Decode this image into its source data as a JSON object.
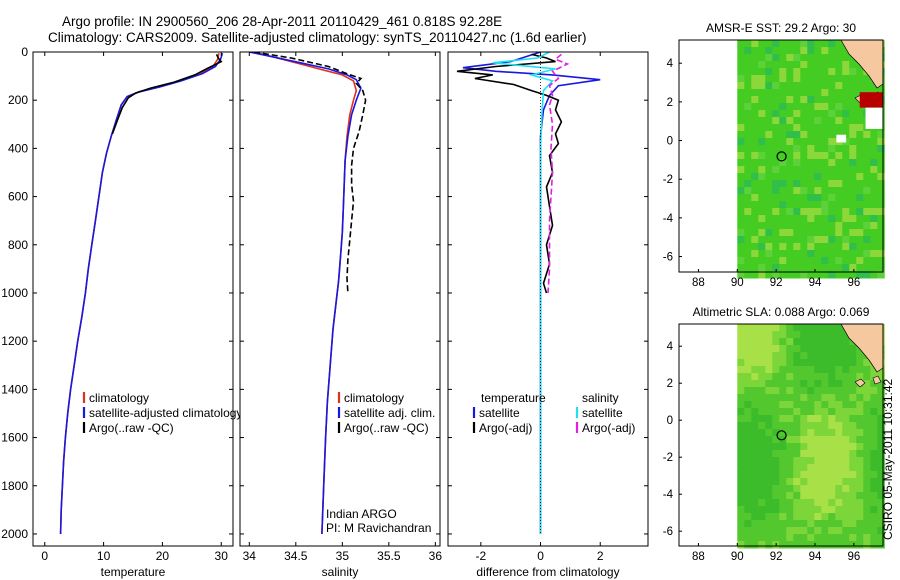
{
  "title": {
    "line1": "Argo profile: IN 2900560_206 28-Apr-2011 20110429_461 0.818S 92.28E",
    "line2": "Climatology: CARS2009. Satellite-adjusted climatology: synTS_20110427.nc (1.6d earlier)"
  },
  "footer": "CSIRO 05-May-2011 10:31:42",
  "colors": {
    "climatology": "#e0301e",
    "satellite": "#1818e0",
    "argo": "#000000",
    "cyan": "#22e0f0",
    "magenta": "#e020e0",
    "ocean": "#44cc22",
    "land": "#f5c8a0",
    "nodata": "#ffffff"
  },
  "chart_data": [
    {
      "type": "line",
      "id": "temperature",
      "xlabel": "temperature",
      "xlim": [
        -2,
        32
      ],
      "ylim": [
        0,
        2050
      ],
      "xticks": [
        "0",
        "10",
        "20",
        "30"
      ],
      "yticks": [
        "0",
        "200",
        "400",
        "600",
        "800",
        "1000",
        "1200",
        "1400",
        "1600",
        "1800",
        "2000"
      ],
      "legend": [
        "climatology",
        "satellite-adjusted climatology",
        "Argo(..raw -QC)"
      ],
      "series": [
        {
          "name": "climatology",
          "color": "#e0301e",
          "dash": false,
          "points": [
            [
              29.6,
              5
            ],
            [
              29.4,
              30
            ],
            [
              28.6,
              60
            ],
            [
              26.5,
              90
            ],
            [
              23.0,
              120
            ],
            [
              19.5,
              145
            ],
            [
              16.0,
              165
            ],
            [
              14.0,
              185
            ],
            [
              13.0,
              220
            ],
            [
              12.2,
              280
            ],
            [
              11.3,
              350
            ],
            [
              10.5,
              420
            ],
            [
              9.8,
              500
            ],
            [
              9.2,
              600
            ],
            [
              8.6,
              700
            ],
            [
              8.0,
              800
            ],
            [
              7.4,
              900
            ],
            [
              6.9,
              1000
            ],
            [
              6.3,
              1100
            ],
            [
              5.6,
              1200
            ],
            [
              5.0,
              1300
            ],
            [
              4.4,
              1400
            ],
            [
              3.9,
              1500
            ],
            [
              3.5,
              1600
            ],
            [
              3.2,
              1700
            ],
            [
              3.0,
              1800
            ],
            [
              2.8,
              1900
            ],
            [
              2.7,
              2000
            ]
          ]
        },
        {
          "name": "satellite-adjusted climatology",
          "color": "#1818e0",
          "dash": false,
          "points": [
            [
              30.2,
              5
            ],
            [
              29.9,
              30
            ],
            [
              29.0,
              60
            ],
            [
              26.8,
              90
            ],
            [
              23.2,
              120
            ],
            [
              19.6,
              145
            ],
            [
              16.1,
              165
            ],
            [
              14.0,
              185
            ],
            [
              13.0,
              220
            ],
            [
              12.2,
              280
            ],
            [
              11.3,
              350
            ],
            [
              10.5,
              420
            ],
            [
              9.8,
              500
            ],
            [
              9.2,
              600
            ],
            [
              8.6,
              700
            ],
            [
              8.0,
              800
            ],
            [
              7.4,
              900
            ],
            [
              6.9,
              1000
            ],
            [
              6.3,
              1100
            ],
            [
              5.6,
              1200
            ],
            [
              5.0,
              1300
            ],
            [
              4.4,
              1400
            ],
            [
              3.9,
              1500
            ],
            [
              3.5,
              1600
            ],
            [
              3.2,
              1700
            ],
            [
              3.0,
              1800
            ],
            [
              2.8,
              1900
            ],
            [
              2.7,
              2000
            ]
          ]
        },
        {
          "name": "Argo(..raw -QC)",
          "color": "#000000",
          "dash": false,
          "points": [
            [
              29.2,
              10
            ],
            [
              29.5,
              25
            ],
            [
              30.0,
              40
            ],
            [
              27.5,
              70
            ],
            [
              25.5,
              95
            ],
            [
              22.0,
              125
            ],
            [
              18.0,
              150
            ],
            [
              15.5,
              170
            ],
            [
              14.2,
              190
            ],
            [
              13.2,
              230
            ],
            [
              12.4,
              280
            ],
            [
              11.5,
              340
            ]
          ]
        }
      ]
    },
    {
      "type": "line",
      "id": "salinity",
      "xlabel": "salinity",
      "xlim": [
        33.9,
        36.05
      ],
      "ylim": [
        0,
        2050
      ],
      "xticks": [
        "34",
        "34.5",
        "35",
        "35.5",
        "36"
      ],
      "legend": [
        "climatology",
        "satellite adj. clim.",
        "Argo(..raw -QC)"
      ],
      "annotation": [
        "Indian ARGO",
        "PI: M Ravichandran"
      ],
      "series": [
        {
          "name": "climatology",
          "color": "#e0301e",
          "dash": false,
          "points": [
            [
              34.05,
              0
            ],
            [
              34.3,
              25
            ],
            [
              34.55,
              50
            ],
            [
              34.8,
              75
            ],
            [
              35.0,
              95
            ],
            [
              35.12,
              120
            ],
            [
              35.15,
              160
            ],
            [
              35.12,
              200
            ],
            [
              35.08,
              260
            ],
            [
              35.05,
              350
            ],
            [
              35.03,
              450
            ],
            [
              35.02,
              550
            ],
            [
              35.01,
              650
            ],
            [
              35.0,
              750
            ],
            [
              34.98,
              850
            ],
            [
              34.96,
              950
            ],
            [
              34.93,
              1050
            ],
            [
              34.9,
              1150
            ],
            [
              34.87,
              1300
            ],
            [
              34.84,
              1450
            ],
            [
              34.82,
              1600
            ],
            [
              34.8,
              1800
            ],
            [
              34.78,
              2000
            ]
          ]
        },
        {
          "name": "satellite adj. clim.",
          "color": "#1818e0",
          "dash": false,
          "points": [
            [
              34.0,
              0
            ],
            [
              34.25,
              20
            ],
            [
              34.55,
              45
            ],
            [
              34.85,
              70
            ],
            [
              35.05,
              95
            ],
            [
              35.15,
              115
            ],
            [
              35.2,
              150
            ],
            [
              35.15,
              200
            ],
            [
              35.1,
              260
            ],
            [
              35.06,
              350
            ],
            [
              35.03,
              450
            ],
            [
              35.02,
              550
            ],
            [
              35.01,
              650
            ],
            [
              35.0,
              750
            ],
            [
              34.98,
              850
            ],
            [
              34.96,
              950
            ],
            [
              34.93,
              1050
            ],
            [
              34.9,
              1150
            ],
            [
              34.87,
              1300
            ],
            [
              34.84,
              1450
            ],
            [
              34.82,
              1600
            ],
            [
              34.8,
              1800
            ],
            [
              34.78,
              2000
            ]
          ]
        },
        {
          "name": "Argo(..raw -QC)",
          "color": "#000000",
          "dash": true,
          "points": [
            [
              34.05,
              0
            ],
            [
              34.45,
              25
            ],
            [
              34.85,
              60
            ],
            [
              35.05,
              90
            ],
            [
              35.2,
              110
            ],
            [
              35.15,
              130
            ],
            [
              35.22,
              160
            ],
            [
              35.25,
              200
            ],
            [
              35.22,
              260
            ],
            [
              35.18,
              330
            ],
            [
              35.12,
              400
            ],
            [
              35.1,
              470
            ],
            [
              35.1,
              550
            ],
            [
              35.12,
              620
            ],
            [
              35.1,
              700
            ],
            [
              35.08,
              780
            ],
            [
              35.06,
              860
            ],
            [
              35.05,
              940
            ],
            [
              35.06,
              1000
            ]
          ]
        }
      ]
    },
    {
      "type": "line",
      "id": "difference",
      "xlabel": "difference from climatology",
      "xlim": [
        -3.1,
        3.6
      ],
      "ylim": [
        0,
        2050
      ],
      "xticks": [
        "-2",
        "0",
        "2"
      ],
      "legend_headers": [
        "temperature",
        "salinity"
      ],
      "legend": [
        "satellite",
        "Argo(-adj)",
        "satellite",
        "Argo(-adj)"
      ],
      "series": [
        {
          "name": "temperature satellite",
          "color": "#1818e0",
          "dash": false,
          "points": [
            [
              0,
              0
            ],
            [
              -1.0,
              40
            ],
            [
              -2.6,
              65
            ],
            [
              -1.5,
              80
            ],
            [
              0.4,
              95
            ],
            [
              2.0,
              115
            ],
            [
              0.6,
              140
            ],
            [
              0.3,
              180
            ],
            [
              0.1,
              240
            ],
            [
              0,
              350
            ],
            [
              0,
              600
            ],
            [
              0,
              1000
            ],
            [
              0,
              2000
            ]
          ]
        },
        {
          "name": "temperature Argo(-adj)",
          "color": "#000000",
          "dash": false,
          "points": [
            [
              -0.3,
              10
            ],
            [
              0.2,
              25
            ],
            [
              0.5,
              40
            ],
            [
              -1.5,
              60
            ],
            [
              -2.8,
              80
            ],
            [
              -1.6,
              95
            ],
            [
              -2.2,
              110
            ],
            [
              -0.9,
              135
            ],
            [
              -0.3,
              160
            ],
            [
              0.2,
              180
            ],
            [
              0.6,
              200
            ],
            [
              0.5,
              240
            ],
            [
              0.7,
              290
            ],
            [
              0.5,
              340
            ],
            [
              0.6,
              380
            ],
            [
              0.3,
              430
            ],
            [
              0.4,
              500
            ],
            [
              0.2,
              560
            ],
            [
              0.3,
              640
            ],
            [
              0.4,
              720
            ],
            [
              0.2,
              800
            ],
            [
              0.3,
              880
            ],
            [
              0.1,
              960
            ],
            [
              0.2,
              1000
            ]
          ]
        },
        {
          "name": "salinity satellite",
          "color": "#22e0f0",
          "dash": false,
          "points": [
            [
              0.3,
              0
            ],
            [
              -0.1,
              25
            ],
            [
              -1.6,
              45
            ],
            [
              0.5,
              70
            ],
            [
              -0.3,
              95
            ],
            [
              0.4,
              120
            ],
            [
              0.1,
              160
            ],
            [
              0.05,
              250
            ],
            [
              0,
              400
            ],
            [
              0,
              700
            ],
            [
              0,
              1000
            ],
            [
              0,
              1500
            ],
            [
              0,
              2000
            ]
          ]
        },
        {
          "name": "salinity Argo(-adj)",
          "color": "#e020e0",
          "dash": true,
          "points": [
            [
              0.7,
              10
            ],
            [
              0.5,
              30
            ],
            [
              0.9,
              50
            ],
            [
              0.4,
              80
            ],
            [
              0.6,
              110
            ],
            [
              0.3,
              140
            ],
            [
              0.4,
              180
            ],
            [
              0.3,
              220
            ],
            [
              0.4,
              300
            ],
            [
              0.35,
              400
            ],
            [
              0.4,
              500
            ],
            [
              0.35,
              600
            ],
            [
              0.3,
              700
            ],
            [
              0.3,
              800
            ],
            [
              0.3,
              900
            ],
            [
              0.25,
              1000
            ]
          ]
        }
      ]
    },
    {
      "type": "heatmap",
      "id": "sst-map",
      "title": "AMSR-E SST: 29.2  Argo: 30",
      "xlim": [
        87,
        97.5
      ],
      "ylim": [
        -6.8,
        5.2
      ],
      "xticks": [
        "88",
        "90",
        "92",
        "94",
        "96"
      ],
      "yticks": [
        "4",
        "2",
        "0",
        "-2",
        "-4",
        "-6"
      ],
      "profile_location": [
        92.28,
        -0.818
      ]
    },
    {
      "type": "heatmap",
      "id": "sla-map",
      "title": "Altimetric SLA: 0.088  Argo: 0.069",
      "xlim": [
        87,
        97.5
      ],
      "ylim": [
        -6.8,
        5.2
      ],
      "xticks": [
        "88",
        "90",
        "92",
        "94",
        "96"
      ],
      "yticks": [
        "4",
        "2",
        "0",
        "-2",
        "-4",
        "-6"
      ],
      "profile_location": [
        92.28,
        -0.818
      ]
    }
  ]
}
